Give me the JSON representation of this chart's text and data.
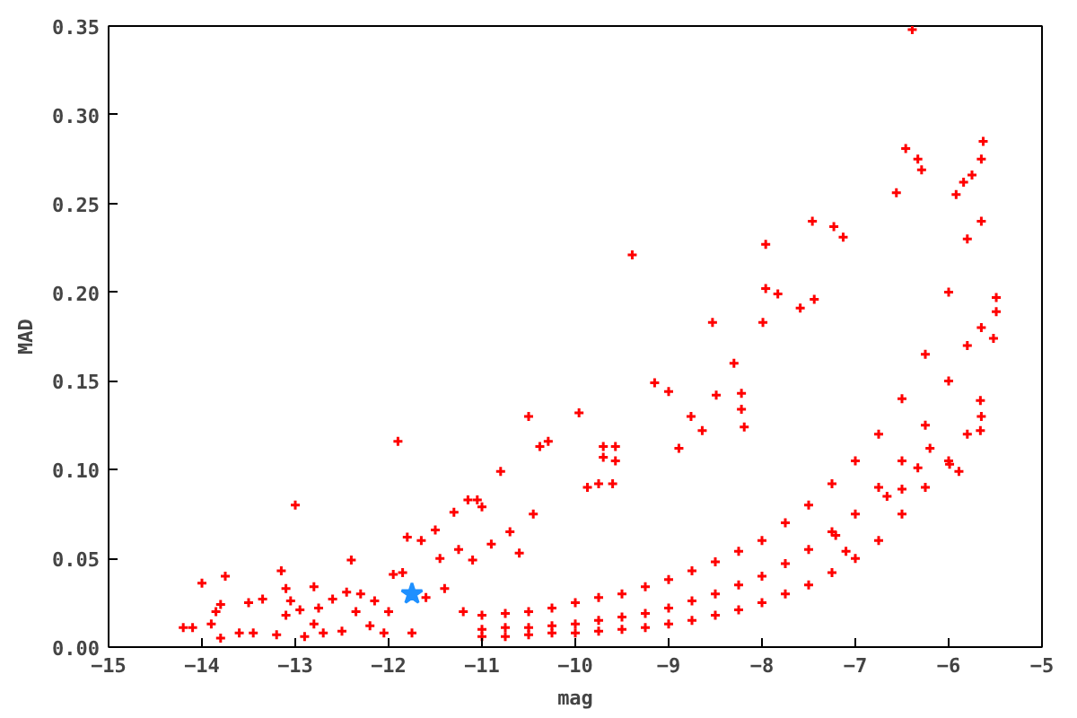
{
  "chart_data": {
    "type": "scatter",
    "xlabel": "mag",
    "ylabel": "MAD",
    "xlim": [
      -15,
      -5
    ],
    "ylim": [
      0,
      0.35
    ],
    "xticks": [
      -15,
      -14,
      -13,
      -12,
      -11,
      -10,
      -9,
      -8,
      -7,
      -6,
      -5
    ],
    "yticks": [
      {
        "value": 0,
        "label": "0.00"
      },
      {
        "value": 0.05,
        "label": "0.05"
      },
      {
        "value": 0.1,
        "label": "0.10"
      },
      {
        "value": 0.15,
        "label": "0.15"
      },
      {
        "value": 0.2,
        "label": "0.20"
      },
      {
        "value": 0.25,
        "label": "0.25"
      },
      {
        "value": 0.3,
        "label": "0.30"
      },
      {
        "value": 0.35,
        "label": "0.35"
      }
    ],
    "grid": false,
    "series": [
      {
        "color": "#ff0000",
        "marker": "cross",
        "x": [
          -14.2,
          -14.1,
          -14.0,
          -13.9,
          -13.85,
          -13.8,
          -13.8,
          -13.75,
          -13.6,
          -13.5,
          -13.45,
          -13.35,
          -13.2,
          -13.15,
          -13.1,
          -13.1,
          -13.05,
          -13.0,
          -12.95,
          -12.9,
          -12.8,
          -12.8,
          -12.75,
          -12.7,
          -12.6,
          -12.5,
          -12.45,
          -12.4,
          -12.35,
          -12.3,
          -12.2,
          -12.15,
          -12.05,
          -12.0,
          -11.95,
          -11.9,
          -11.85,
          -11.8,
          -11.75,
          -11.65,
          -11.6,
          -11.5,
          -11.45,
          -11.4,
          -11.3,
          -11.25,
          -11.2,
          -11.15,
          -11.1,
          -11.05,
          -11.0,
          -10.9,
          -10.8,
          -10.7,
          -10.6,
          -10.5,
          -10.45,
          -6.39,
          -6.46,
          -6.33,
          -6.29,
          -6.56,
          -9.39,
          -7.46,
          -7.23,
          -7.13,
          -7.96,
          -7.96,
          -7.83,
          -8.53,
          -7.99,
          -7.59,
          -7.44,
          -9.15,
          -9.0,
          -9.96,
          -8.3,
          -8.49,
          -10.38,
          -10.29,
          -9.7,
          -9.57,
          -9.7,
          -9.57,
          -9.87,
          -9.75,
          -9.6,
          -8.89,
          -8.76,
          -8.64,
          -8.22,
          -8.22,
          -8.19,
          -5.99,
          -5.89,
          -5.66,
          -5.66,
          -5.52,
          -5.49,
          -5.49,
          -5.63,
          -5.65,
          -5.75,
          -5.84,
          -5.92,
          -7.1,
          -7.21,
          -6.66,
          -6.5,
          -6.33,
          -6.2,
          -11.0,
          -11.0,
          -11.0,
          -10.75,
          -10.75,
          -10.75,
          -10.5,
          -10.5,
          -10.5,
          -10.25,
          -10.25,
          -10.25,
          -10.0,
          -10.0,
          -10.0,
          -9.75,
          -9.75,
          -9.75,
          -9.5,
          -9.5,
          -9.5,
          -9.25,
          -9.25,
          -9.25,
          -9.0,
          -9.0,
          -9.0,
          -8.75,
          -8.75,
          -8.75,
          -8.5,
          -8.5,
          -8.5,
          -8.25,
          -8.25,
          -8.25,
          -8.0,
          -8.0,
          -8.0,
          -7.75,
          -7.75,
          -7.75,
          -7.5,
          -7.5,
          -7.5,
          -7.25,
          -7.25,
          -7.25,
          -7.0,
          -7.0,
          -7.0,
          -6.75,
          -6.75,
          -6.75,
          -6.5,
          -6.5,
          -6.5,
          -6.25,
          -6.25,
          -6.25,
          -6.0,
          -6.0,
          -6.0,
          -5.8,
          -5.8,
          -5.8,
          -5.65,
          -5.65,
          -5.65
        ],
        "values": [
          0.011,
          0.011,
          0.036,
          0.013,
          0.02,
          0.005,
          0.024,
          0.04,
          0.008,
          0.025,
          0.008,
          0.027,
          0.007,
          0.043,
          0.033,
          0.018,
          0.026,
          0.08,
          0.021,
          0.006,
          0.034,
          0.013,
          0.022,
          0.008,
          0.027,
          0.009,
          0.031,
          0.049,
          0.02,
          0.03,
          0.012,
          0.026,
          0.008,
          0.02,
          0.041,
          0.116,
          0.042,
          0.062,
          0.008,
          0.06,
          0.028,
          0.066,
          0.05,
          0.033,
          0.076,
          0.055,
          0.02,
          0.083,
          0.049,
          0.083,
          0.079,
          0.058,
          0.099,
          0.065,
          0.053,
          0.13,
          0.075,
          0.348,
          0.281,
          0.275,
          0.269,
          0.256,
          0.221,
          0.24,
          0.237,
          0.231,
          0.227,
          0.202,
          0.199,
          0.183,
          0.183,
          0.191,
          0.196,
          0.149,
          0.144,
          0.132,
          0.16,
          0.142,
          0.113,
          0.116,
          0.113,
          0.113,
          0.107,
          0.105,
          0.09,
          0.092,
          0.092,
          0.112,
          0.13,
          0.122,
          0.134,
          0.143,
          0.124,
          0.103,
          0.099,
          0.122,
          0.139,
          0.174,
          0.189,
          0.197,
          0.285,
          0.275,
          0.266,
          0.262,
          0.255,
          0.054,
          0.063,
          0.085,
          0.089,
          0.101,
          0.112,
          0.006,
          0.01,
          0.018,
          0.006,
          0.011,
          0.019,
          0.007,
          0.011,
          0.02,
          0.008,
          0.012,
          0.022,
          0.008,
          0.013,
          0.025,
          0.009,
          0.015,
          0.028,
          0.01,
          0.017,
          0.03,
          0.011,
          0.019,
          0.034,
          0.013,
          0.022,
          0.038,
          0.015,
          0.026,
          0.043,
          0.018,
          0.03,
          0.048,
          0.021,
          0.035,
          0.054,
          0.025,
          0.04,
          0.06,
          0.03,
          0.047,
          0.07,
          0.035,
          0.055,
          0.08,
          0.042,
          0.065,
          0.092,
          0.05,
          0.075,
          0.105,
          0.06,
          0.09,
          0.12,
          0.075,
          0.105,
          0.14,
          0.09,
          0.125,
          0.165,
          0.105,
          0.15,
          0.2,
          0.12,
          0.17,
          0.23,
          0.13,
          0.18,
          0.24
        ]
      },
      {
        "color": "#1e90ff",
        "marker": "star",
        "x": [
          -11.75
        ],
        "values": [
          0.03
        ]
      }
    ]
  }
}
